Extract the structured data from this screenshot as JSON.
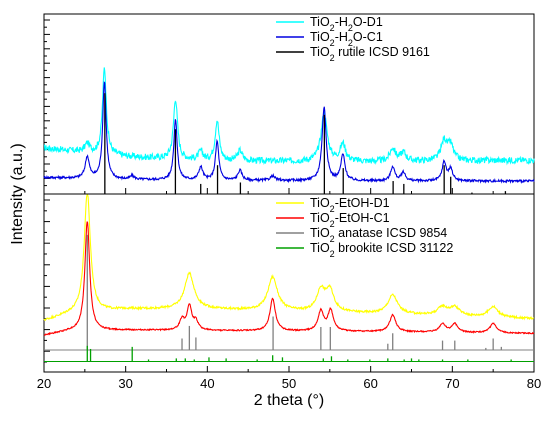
{
  "chart_data": [
    {
      "panel": "top",
      "type": "line",
      "x_range": [
        20,
        80
      ],
      "y_label": "Intensity (a.u.)",
      "y_ticks_labeled": false,
      "grid": false,
      "legend_position": "top-right",
      "series": [
        {
          "name_parts": [
            "TiO",
            "2",
            "-H",
            "2",
            "O-D1"
          ],
          "color": "#00ffff",
          "kind": "profile",
          "baseline": 3.45,
          "noise": 0.22,
          "background": [
            [
              20,
              3.2
            ],
            [
              30,
              2.6
            ],
            [
              40,
              2.3
            ],
            [
              60,
              2.25
            ],
            [
              80,
              2.35
            ]
          ],
          "peaks": [
            [
              25.3,
              0.6,
              0.35
            ],
            [
              27.4,
              6.0,
              0.28
            ],
            [
              36.1,
              4.2,
              0.3
            ],
            [
              39.2,
              0.6,
              0.35
            ],
            [
              41.2,
              2.8,
              0.3
            ],
            [
              44.0,
              0.7,
              0.35
            ],
            [
              54.3,
              3.3,
              0.45
            ],
            [
              56.6,
              1.2,
              0.4
            ],
            [
              62.7,
              0.9,
              0.4
            ],
            [
              64.0,
              0.6,
              0.4
            ],
            [
              69.0,
              1.4,
              0.45
            ],
            [
              69.8,
              1.0,
              0.4
            ]
          ]
        },
        {
          "name_parts": [
            "TiO",
            "2",
            "-H",
            "2",
            "O-C1"
          ],
          "color": "#0000e0",
          "kind": "profile",
          "baseline": 1.15,
          "noise": 0.08,
          "background": [
            [
              20,
              1.15
            ],
            [
              30,
              1.0
            ],
            [
              40,
              0.95
            ],
            [
              60,
              0.9
            ],
            [
              80,
              0.9
            ]
          ],
          "peaks": [
            [
              25.3,
              1.5,
              0.3
            ],
            [
              27.4,
              6.8,
              0.25
            ],
            [
              30.8,
              0.25,
              0.3
            ],
            [
              36.1,
              4.2,
              0.25
            ],
            [
              39.2,
              0.9,
              0.3
            ],
            [
              41.2,
              2.7,
              0.25
            ],
            [
              44.0,
              0.7,
              0.3
            ],
            [
              48.0,
              0.3,
              0.35
            ],
            [
              54.3,
              5.1,
              0.3
            ],
            [
              56.6,
              1.8,
              0.3
            ],
            [
              62.7,
              1.0,
              0.3
            ],
            [
              64.0,
              0.6,
              0.3
            ],
            [
              69.0,
              1.3,
              0.3
            ],
            [
              69.8,
              0.8,
              0.3
            ]
          ]
        },
        {
          "name_parts": [
            "TiO",
            "2",
            " rutile ICSD 9161"
          ],
          "color": "#000000",
          "kind": "sticks",
          "baseline": 0,
          "sticks": [
            [
              27.45,
              7.0
            ],
            [
              36.09,
              4.5
            ],
            [
              39.19,
              0.7
            ],
            [
              41.25,
              2.0
            ],
            [
              44.05,
              0.8
            ],
            [
              54.33,
              5.5
            ],
            [
              56.64,
              1.8
            ],
            [
              62.75,
              0.9
            ],
            [
              64.06,
              0.7
            ],
            [
              69.0,
              2.0
            ],
            [
              69.8,
              1.2
            ],
            [
              72.4,
              0.1
            ],
            [
              76.5,
              0.2
            ]
          ]
        }
      ]
    },
    {
      "panel": "bottom",
      "type": "line",
      "x_range": [
        20,
        80
      ],
      "xlabel": "2 theta (°)",
      "x_ticks": [
        20,
        30,
        40,
        50,
        60,
        70,
        80
      ],
      "y_label": "Intensity (a.u.)",
      "y_ticks_labeled": false,
      "grid": false,
      "legend_position": "top-right",
      "series": [
        {
          "name_parts": [
            "TiO",
            "2",
            "-EtOH-D1"
          ],
          "color": "#ffff00",
          "kind": "profile",
          "baseline": 5.6,
          "noise": 0.1,
          "background": [
            [
              20,
              4.9
            ],
            [
              23,
              5.5
            ],
            [
              30,
              6.0
            ],
            [
              40,
              6.0
            ],
            [
              60,
              5.6
            ],
            [
              80,
              5.1
            ]
          ],
          "peaks": [
            [
              25.3,
              11.5,
              0.45
            ],
            [
              37.8,
              3.4,
              0.7
            ],
            [
              48.0,
              3.2,
              0.7
            ],
            [
              53.9,
              2.0,
              0.6
            ],
            [
              55.0,
              2.0,
              0.6
            ],
            [
              62.7,
              1.8,
              0.7
            ],
            [
              68.8,
              0.8,
              0.7
            ],
            [
              70.3,
              0.8,
              0.7
            ],
            [
              75.0,
              1.0,
              0.7
            ]
          ]
        },
        {
          "name_parts": [
            "TiO",
            "2",
            "-EtOH-C1"
          ],
          "color": "#ff0000",
          "kind": "profile",
          "baseline": 3.6,
          "noise": 0.06,
          "background": [
            [
              20,
              3.5
            ],
            [
              23,
              3.9
            ],
            [
              30,
              4.0
            ],
            [
              40,
              3.95
            ],
            [
              60,
              3.85
            ],
            [
              80,
              3.7
            ]
          ],
          "peaks": [
            [
              25.3,
              10.5,
              0.35
            ],
            [
              36.9,
              1.0,
              0.35
            ],
            [
              37.8,
              2.3,
              0.35
            ],
            [
              38.6,
              0.8,
              0.35
            ],
            [
              48.0,
              3.1,
              0.4
            ],
            [
              53.9,
              1.9,
              0.4
            ],
            [
              55.1,
              2.0,
              0.4
            ],
            [
              62.7,
              1.6,
              0.45
            ],
            [
              68.8,
              0.8,
              0.45
            ],
            [
              70.3,
              0.8,
              0.45
            ],
            [
              75.0,
              0.9,
              0.45
            ]
          ]
        },
        {
          "name_parts": [
            "TiO",
            "2",
            " anatase ICSD 9854"
          ],
          "color": "#808080",
          "kind": "sticks",
          "baseline": 2.1,
          "sticks": [
            [
              25.3,
              11.0
            ],
            [
              36.9,
              1.1
            ],
            [
              37.8,
              2.3
            ],
            [
              38.6,
              1.2
            ],
            [
              48.05,
              3.2
            ],
            [
              53.9,
              2.2
            ],
            [
              55.06,
              2.2
            ],
            [
              62.1,
              0.6
            ],
            [
              62.7,
              1.6
            ],
            [
              68.8,
              0.9
            ],
            [
              70.3,
              0.9
            ],
            [
              74.1,
              0.2
            ],
            [
              75.0,
              1.1
            ],
            [
              76.0,
              0.3
            ]
          ]
        },
        {
          "name_parts": [
            "TiO",
            "2",
            " brookite ICSD 31122"
          ],
          "color": "#00a000",
          "kind": "sticks",
          "baseline": 1.0,
          "sticks": [
            [
              25.3,
              1.5
            ],
            [
              25.7,
              1.2
            ],
            [
              30.8,
              1.4
            ],
            [
              32.8,
              0.2
            ],
            [
              36.2,
              0.3
            ],
            [
              37.3,
              0.3
            ],
            [
              38.4,
              0.2
            ],
            [
              40.2,
              0.4
            ],
            [
              42.3,
              0.3
            ],
            [
              46.1,
              0.2
            ],
            [
              48.0,
              0.6
            ],
            [
              49.2,
              0.4
            ],
            [
              54.2,
              0.3
            ],
            [
              55.2,
              0.5
            ],
            [
              57.2,
              0.2
            ],
            [
              59.9,
              0.2
            ],
            [
              62.1,
              0.3
            ],
            [
              64.1,
              0.2
            ],
            [
              65.0,
              0.3
            ],
            [
              65.9,
              0.2
            ],
            [
              68.8,
              0.2
            ],
            [
              71.9,
              0.2
            ],
            [
              77.2,
              0.2
            ]
          ]
        }
      ]
    }
  ]
}
